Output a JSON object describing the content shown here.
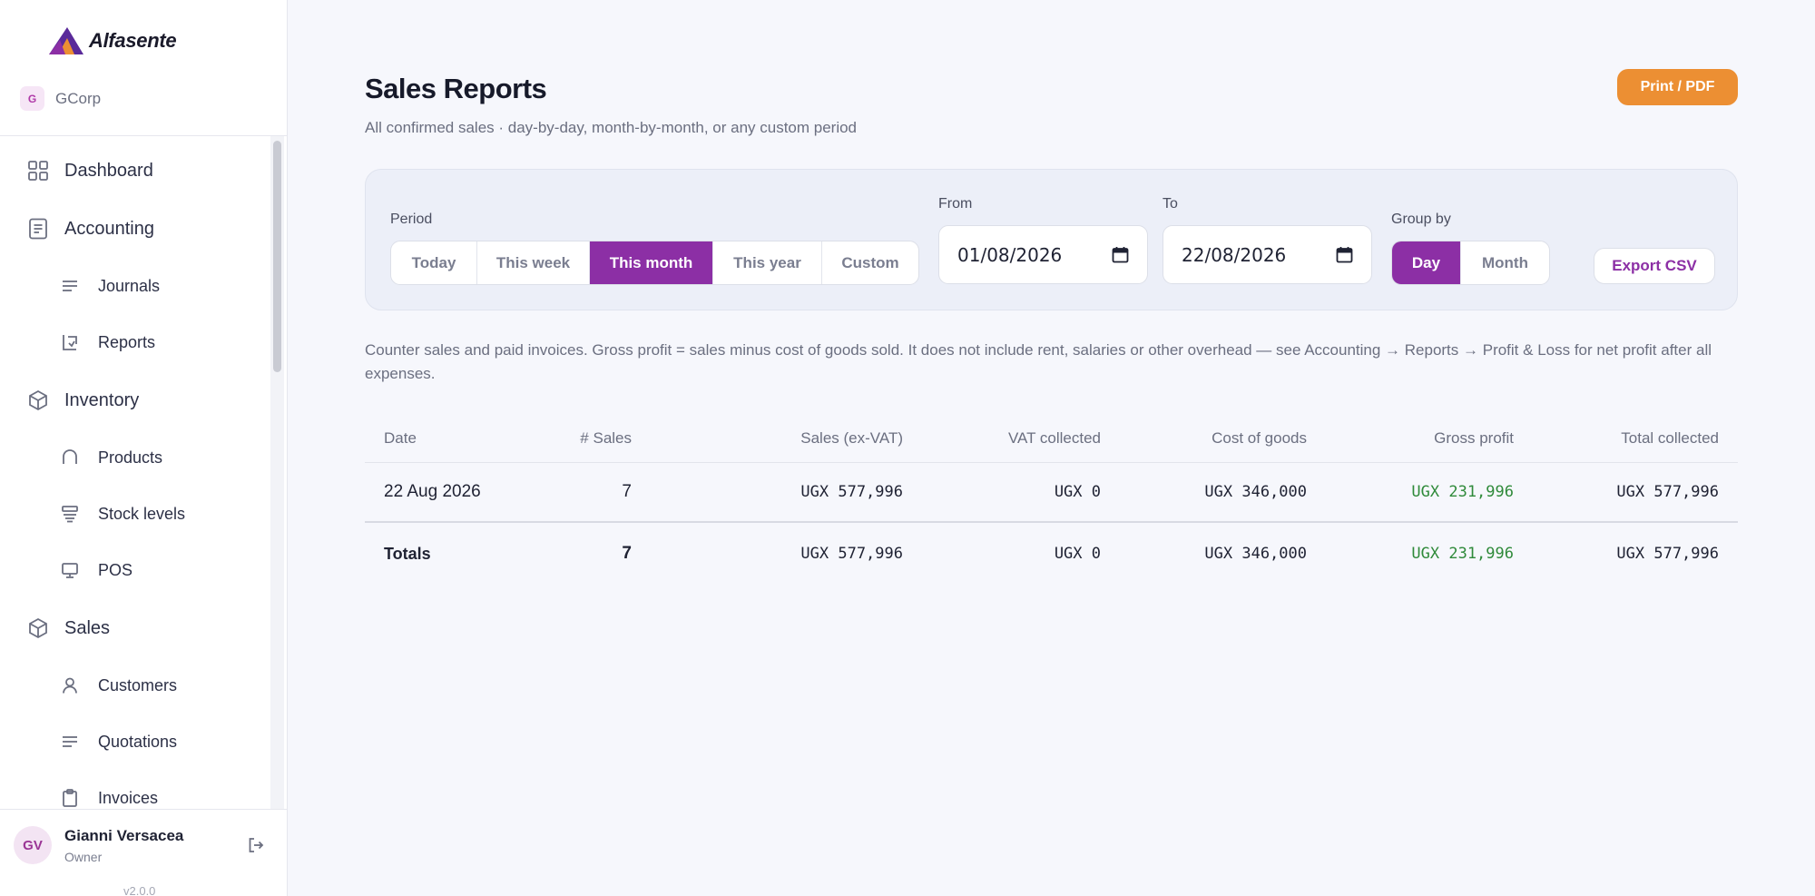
{
  "brand": {
    "name": "Alfasente"
  },
  "org": {
    "initial": "G",
    "name": "GCorp"
  },
  "nav": {
    "dashboard": "Dashboard",
    "accounting": "Accounting",
    "journals": "Journals",
    "reports": "Reports",
    "inventory": "Inventory",
    "products": "Products",
    "stock_levels": "Stock levels",
    "pos": "POS",
    "sales": "Sales",
    "customers": "Customers",
    "quotations": "Quotations",
    "invoices": "Invoices"
  },
  "user": {
    "initials": "GV",
    "name": "Gianni Versacea",
    "role": "Owner"
  },
  "version": "v2.0.0",
  "page": {
    "title": "Sales Reports",
    "subtitle": "All confirmed sales · day-by-day, month-by-month, or any custom period",
    "print_label": "Print / PDF"
  },
  "filters": {
    "period_label": "Period",
    "periods": [
      "Today",
      "This week",
      "This month",
      "This year",
      "Custom"
    ],
    "active_period": "This month",
    "from_label": "From",
    "from_value": "01/08/2026",
    "to_label": "To",
    "to_value": "22/08/2026",
    "group_label": "Group by",
    "group_options": [
      "Day",
      "Month"
    ],
    "active_group": "Day",
    "export_label": "Export CSV"
  },
  "note": "Counter sales and paid invoices. Gross profit = sales minus cost of goods sold. It does not include rent, salaries or other overhead — see Accounting → Reports → Profit & Loss for net profit after all expenses.",
  "table": {
    "columns": [
      "Date",
      "# Sales",
      "Sales (ex-VAT)",
      "VAT collected",
      "Cost of goods",
      "Gross profit",
      "Total collected"
    ],
    "rows": [
      {
        "date": "22 Aug 2026",
        "sales": "7",
        "sales_ex_vat": "UGX 577,996",
        "vat": "UGX 0",
        "cost": "UGX 346,000",
        "profit": "UGX 231,996",
        "total": "UGX 577,996"
      }
    ],
    "totals": {
      "label": "Totals",
      "sales": "7",
      "sales_ex_vat": "UGX 577,996",
      "vat": "UGX 0",
      "cost": "UGX 346,000",
      "profit": "UGX 231,996",
      "total": "UGX 577,996"
    }
  },
  "colors": {
    "accent": "#8c2fa5",
    "print": "#ec8f33",
    "profit": "#2f8a3a"
  }
}
